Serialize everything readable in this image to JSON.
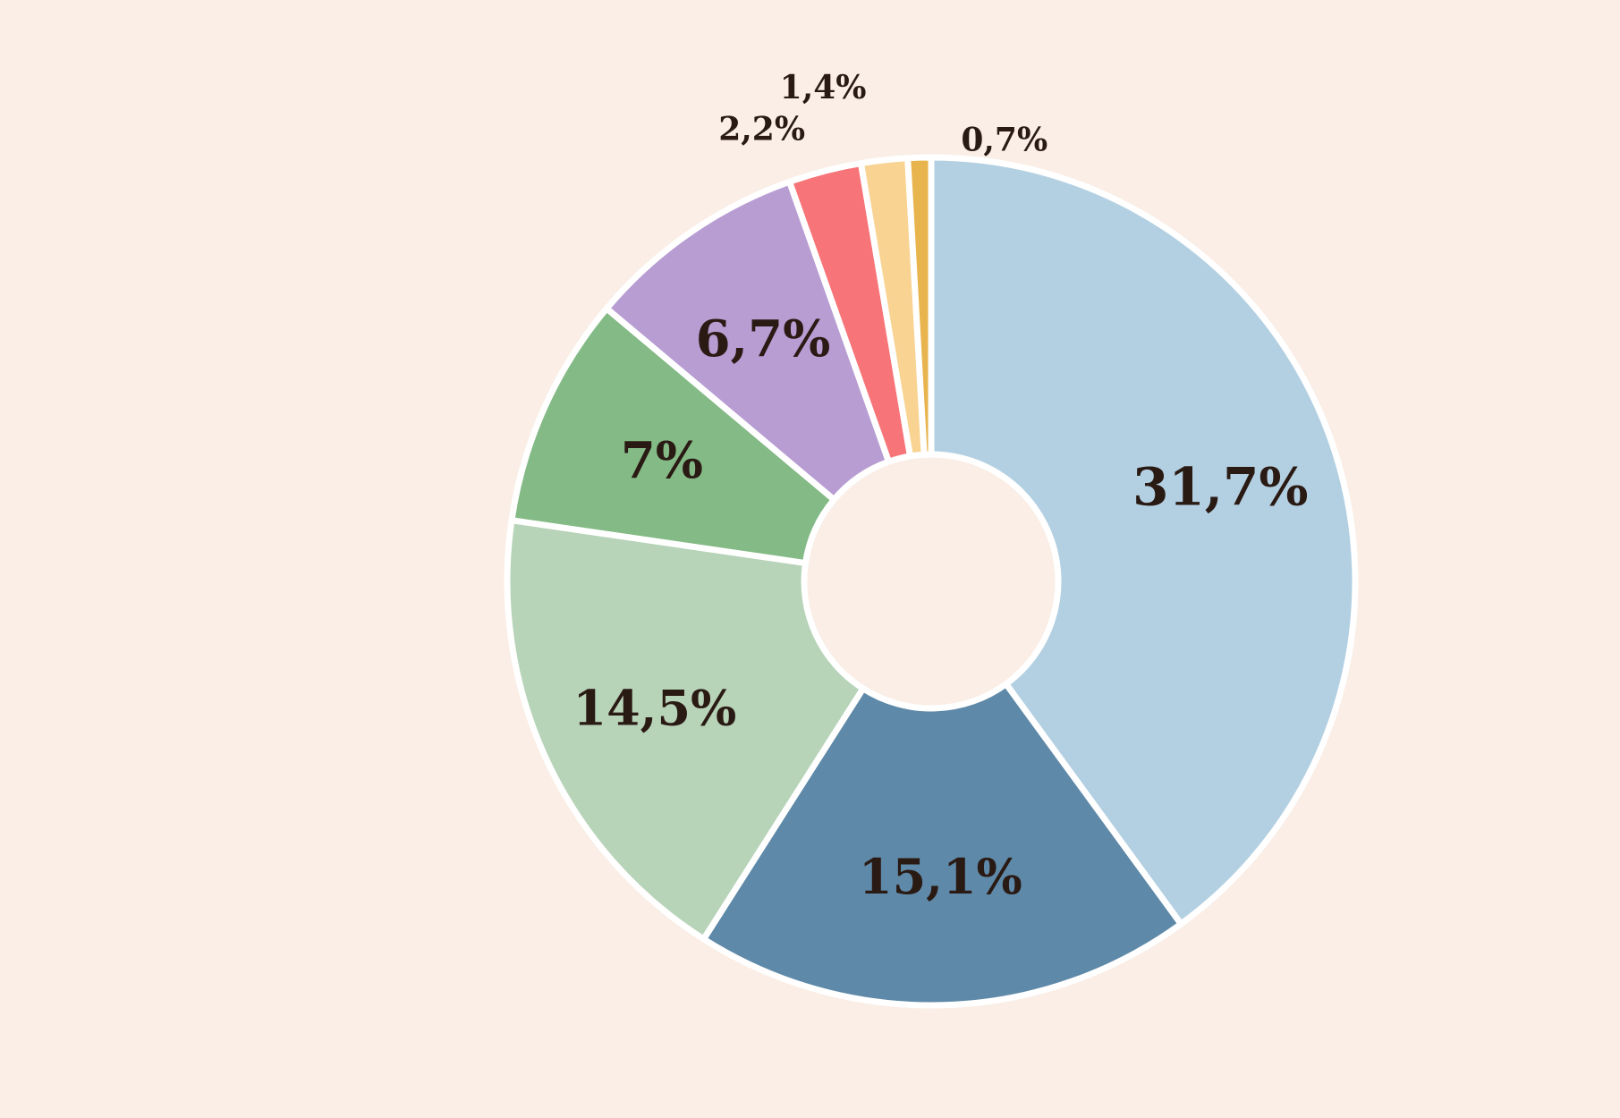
{
  "background_color": "#faeee6",
  "chart_data": {
    "type": "pie",
    "variant": "donut",
    "title": "",
    "start_angle_deg": 0,
    "direction": "clockwise",
    "segments": [
      {
        "value": 31.7,
        "label": "31,7%",
        "color": "#b3d0e2"
      },
      {
        "value": 15.1,
        "label": "15,1%",
        "color": "#5e89a8"
      },
      {
        "value": 14.5,
        "label": "14,5%",
        "color": "#b7d3b8"
      },
      {
        "value": 7.0,
        "label": "7%",
        "color": "#84ba86"
      },
      {
        "value": 6.7,
        "label": "6,7%",
        "color": "#b89dd3"
      },
      {
        "value": 2.2,
        "label": "2,2%",
        "color": "#f77478"
      },
      {
        "value": 1.4,
        "label": "1,4%",
        "color": "#f8d392"
      },
      {
        "value": 0.7,
        "label": "0,7%",
        "color": "#e8b44e"
      }
    ]
  }
}
